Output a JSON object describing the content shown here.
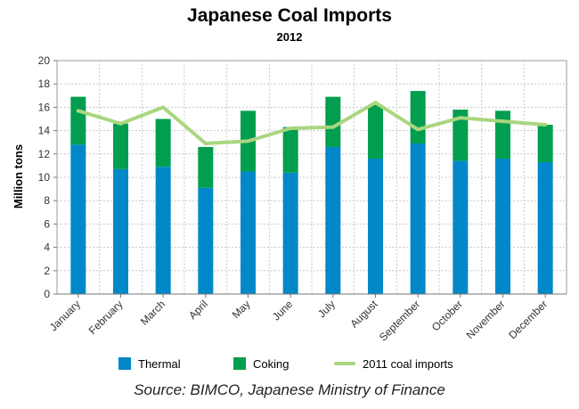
{
  "chart_data": {
    "type": "bar",
    "title": "Japanese Coal Imports",
    "subtitle": "2012",
    "ylabel": "Million tons",
    "xlabel": "",
    "ylim": [
      0,
      20
    ],
    "yticks": [
      "0",
      "2",
      "4",
      "6",
      "8",
      "10",
      "12",
      "14",
      "16",
      "18",
      "20"
    ],
    "grid": true,
    "stacked": true,
    "categories": [
      "January",
      "February",
      "March",
      "April",
      "May",
      "June",
      "July",
      "August",
      "September",
      "October",
      "November",
      "December"
    ],
    "series": [
      {
        "name": "Thermal",
        "kind": "bar",
        "color": "#0088c8",
        "values": [
          12.8,
          10.7,
          10.9,
          9.1,
          10.5,
          10.4,
          12.6,
          11.6,
          12.9,
          11.4,
          11.6,
          11.3
        ]
      },
      {
        "name": "Coking",
        "kind": "bar",
        "color": "#009e4e",
        "values": [
          4.1,
          3.9,
          4.1,
          3.5,
          5.2,
          3.9,
          4.3,
          4.6,
          4.5,
          4.4,
          4.1,
          3.2
        ]
      },
      {
        "name": "2011 coal imports",
        "kind": "line",
        "color": "#a9d67f",
        "values": [
          15.7,
          14.6,
          16.0,
          12.9,
          13.1,
          14.2,
          14.3,
          16.4,
          14.1,
          15.1,
          14.8,
          14.5
        ]
      }
    ],
    "legend_position": "bottom"
  },
  "source": "Source: BIMCO, Japanese Ministry of Finance"
}
